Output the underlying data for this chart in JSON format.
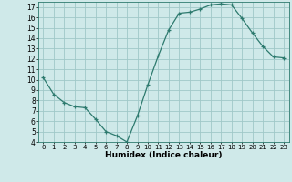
{
  "x": [
    0,
    1,
    2,
    3,
    4,
    5,
    6,
    7,
    8,
    9,
    10,
    11,
    12,
    13,
    14,
    15,
    16,
    17,
    18,
    19,
    20,
    21,
    22,
    23
  ],
  "y": [
    10.2,
    8.6,
    7.8,
    7.4,
    7.3,
    6.2,
    5.0,
    4.6,
    4.0,
    6.5,
    9.5,
    12.3,
    14.8,
    16.4,
    16.5,
    16.8,
    17.2,
    17.3,
    17.2,
    15.9,
    14.5,
    13.2,
    12.2,
    12.1
  ],
  "xlabel": "Humidex (Indice chaleur)",
  "bg_color": "#cfe9e9",
  "grid_color": "#a0c8c8",
  "line_color": "#2d7a6e",
  "marker_color": "#2d7a6e",
  "ylim": [
    4,
    17.5
  ],
  "xlim": [
    -0.5,
    23.5
  ],
  "yticks": [
    4,
    5,
    6,
    7,
    8,
    9,
    10,
    11,
    12,
    13,
    14,
    15,
    16,
    17
  ],
  "xticks": [
    0,
    1,
    2,
    3,
    4,
    5,
    6,
    7,
    8,
    9,
    10,
    11,
    12,
    13,
    14,
    15,
    16,
    17,
    18,
    19,
    20,
    21,
    22,
    23
  ],
  "xlabel_fontsize": 6.5,
  "tick_fontsize_x": 5.0,
  "tick_fontsize_y": 5.5
}
